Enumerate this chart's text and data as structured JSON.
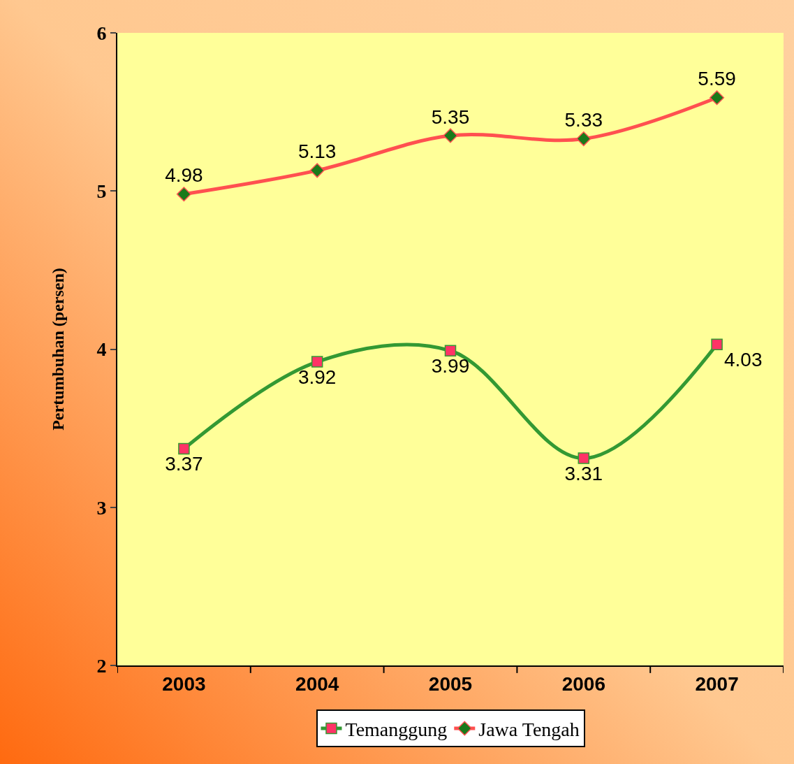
{
  "chart_data": {
    "type": "line",
    "ylabel": "Pertumbuhan (persen)",
    "categories": [
      "2003",
      "2004",
      "2005",
      "2006",
      "2007"
    ],
    "series": [
      {
        "name": "Temanggung",
        "color": "#339933",
        "colors": [
          "#ff3366",
          "#ff3366",
          "#ff3366",
          "#ff3366",
          "#ff3366"
        ],
        "marker": "square",
        "values": [
          3.37,
          3.92,
          3.99,
          3.31,
          4.03
        ]
      },
      {
        "name": "Jawa Tengah",
        "color": "#ff5050",
        "colors": [
          "#1a7a1a",
          "#1a7a1a",
          "#1a7a1a",
          "#1a7a1a",
          "#1a7a1a"
        ],
        "marker": "diamond",
        "values": [
          4.98,
          5.13,
          5.35,
          5.33,
          5.59
        ]
      }
    ],
    "ylim": [
      2,
      6
    ],
    "yticks": [
      2,
      3,
      4,
      5,
      6
    ],
    "data_labels": true,
    "legend": "bottom",
    "grid": false
  }
}
